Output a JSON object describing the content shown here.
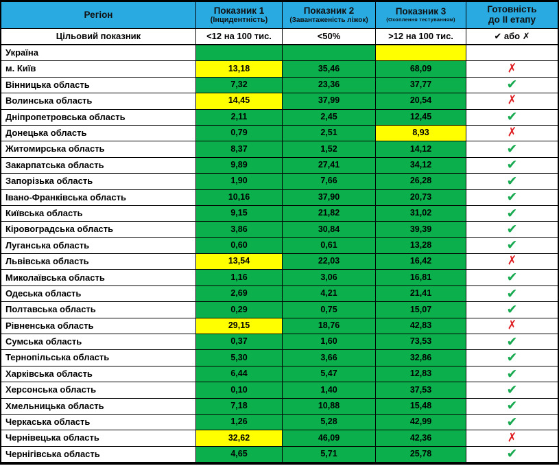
{
  "colors": {
    "header_blue": "#29ABE2",
    "cell_green": "#0BB04C",
    "cell_yellow": "#FFFF00",
    "cell_gray": "#C0C0C0",
    "check_green": "#17A94F",
    "cross_red": "#DE1B20",
    "grid": "#000000"
  },
  "marks": {
    "check": "✔",
    "cross": "✗"
  },
  "header": {
    "region": "Регіон",
    "ind1_title": "Показник 1",
    "ind1_sub": "(Інцидентність)",
    "ind2_title": "Показник 2",
    "ind2_sub": "(Завантаженість ліжок)",
    "ind3_title": "Показник 3",
    "ind3_sub": "(Охоплення тестуванням)",
    "ready_line1": "Готовність",
    "ready_line2": "до II етапу"
  },
  "target_row": {
    "label": "Цільовий показник",
    "ind1": "<12 на 100 тис.",
    "ind2": "<50%",
    "ind3": ">12 на 100 тис.",
    "ready": "✔ або ✗"
  },
  "chart_data": {
    "type": "table",
    "columns": [
      "Регіон",
      "Показник 1 (Інцидентність)",
      "Показник 2 (Завантаженість ліжок)",
      "Показник 3 (Охоплення тестуванням)",
      "Готовність до II етапу (✔ або ✗)"
    ],
    "target_values": [
      "<12 на 100 тис.",
      "<50%",
      ">12 на 100 тис."
    ],
    "rows": [
      {
        "region": "Україна",
        "v1": "",
        "v1_bg": "green",
        "v2": "",
        "v2_bg": "green",
        "v3": "",
        "v3_bg": "yellow",
        "ready": "none"
      },
      {
        "region": "м. Київ",
        "v1": "13,18",
        "v1_bg": "yellow",
        "v2": "35,46",
        "v2_bg": "green",
        "v3": "68,09",
        "v3_bg": "green",
        "ready": "no"
      },
      {
        "region": "Вінницька область",
        "v1": "7,32",
        "v1_bg": "green",
        "v2": "23,36",
        "v2_bg": "green",
        "v3": "37,77",
        "v3_bg": "green",
        "ready": "yes"
      },
      {
        "region": "Волинська область",
        "v1": "14,45",
        "v1_bg": "yellow",
        "v2": "37,99",
        "v2_bg": "green",
        "v3": "20,54",
        "v3_bg": "green",
        "ready": "no"
      },
      {
        "region": "Дніпропетровська область",
        "v1": "2,11",
        "v1_bg": "green",
        "v2": "2,45",
        "v2_bg": "green",
        "v3": "12,45",
        "v3_bg": "green",
        "ready": "yes"
      },
      {
        "region": "Донецька область",
        "v1": "0,79",
        "v1_bg": "green",
        "v2": "2,51",
        "v2_bg": "green",
        "v3": "8,93",
        "v3_bg": "yellow",
        "ready": "no"
      },
      {
        "region": "Житомирська область",
        "v1": "8,37",
        "v1_bg": "green",
        "v2": "1,52",
        "v2_bg": "green",
        "v3": "14,12",
        "v3_bg": "green",
        "ready": "yes"
      },
      {
        "region": "Закарпатська область",
        "v1": "9,89",
        "v1_bg": "green",
        "v2": "27,41",
        "v2_bg": "green",
        "v3": "34,12",
        "v3_bg": "green",
        "ready": "yes"
      },
      {
        "region": "Запорізька область",
        "v1": "1,90",
        "v1_bg": "green",
        "v2": "7,66",
        "v2_bg": "green",
        "v3": "26,28",
        "v3_bg": "green",
        "ready": "yes"
      },
      {
        "region": "Івано-Франківська область",
        "v1": "10,16",
        "v1_bg": "green",
        "v2": "37,90",
        "v2_bg": "green",
        "v3": "20,73",
        "v3_bg": "green",
        "ready": "yes"
      },
      {
        "region": "Київська область",
        "v1": "9,15",
        "v1_bg": "green",
        "v2": "21,82",
        "v2_bg": "green",
        "v3": "31,02",
        "v3_bg": "green",
        "ready": "yes"
      },
      {
        "region": "Кіровоградська область",
        "v1": "3,86",
        "v1_bg": "green",
        "v2": "30,84",
        "v2_bg": "green",
        "v3": "39,39",
        "v3_bg": "green",
        "ready": "yes"
      },
      {
        "region": "Луганська область",
        "v1": "0,60",
        "v1_bg": "green",
        "v2": "0,61",
        "v2_bg": "green",
        "v3": "13,28",
        "v3_bg": "green",
        "ready": "yes"
      },
      {
        "region": "Львівська область",
        "v1": "13,54",
        "v1_bg": "yellow",
        "v2": "22,03",
        "v2_bg": "green",
        "v3": "16,42",
        "v3_bg": "green",
        "ready": "no"
      },
      {
        "region": "Миколаївська область",
        "v1": "1,16",
        "v1_bg": "green",
        "v2": "3,06",
        "v2_bg": "green",
        "v3": "16,81",
        "v3_bg": "green",
        "ready": "yes"
      },
      {
        "region": "Одеська область",
        "v1": "2,69",
        "v1_bg": "green",
        "v2": "4,21",
        "v2_bg": "green",
        "v3": "21,41",
        "v3_bg": "green",
        "ready": "yes"
      },
      {
        "region": "Полтавська область",
        "v1": "0,29",
        "v1_bg": "green",
        "v2": "0,75",
        "v2_bg": "green",
        "v3": "15,07",
        "v3_bg": "green",
        "ready": "yes"
      },
      {
        "region": "Рівненська область",
        "v1": "29,15",
        "v1_bg": "yellow",
        "v2": "18,76",
        "v2_bg": "green",
        "v3": "42,83",
        "v3_bg": "green",
        "ready": "no"
      },
      {
        "region": "Сумська область",
        "v1": "0,37",
        "v1_bg": "green",
        "v2": "1,60",
        "v2_bg": "green",
        "v3": "73,53",
        "v3_bg": "green",
        "ready": "yes"
      },
      {
        "region": "Тернопільська область",
        "v1": "5,30",
        "v1_bg": "green",
        "v2": "3,66",
        "v2_bg": "green",
        "v3": "32,86",
        "v3_bg": "green",
        "ready": "yes"
      },
      {
        "region": "Харківська область",
        "v1": "6,44",
        "v1_bg": "green",
        "v2": "5,47",
        "v2_bg": "green",
        "v3": "12,83",
        "v3_bg": "green",
        "ready": "yes"
      },
      {
        "region": "Херсонська область",
        "v1": "0,10",
        "v1_bg": "green",
        "v2": "1,40",
        "v2_bg": "green",
        "v3": "37,53",
        "v3_bg": "green",
        "ready": "yes"
      },
      {
        "region": "Хмельницька область",
        "v1": "7,18",
        "v1_bg": "green",
        "v2": "10,88",
        "v2_bg": "green",
        "v3": "15,48",
        "v3_bg": "green",
        "ready": "yes"
      },
      {
        "region": "Черкаська область",
        "v1": "1,26",
        "v1_bg": "green",
        "v2": "5,28",
        "v2_bg": "green",
        "v3": "42,99",
        "v3_bg": "green",
        "ready": "yes"
      },
      {
        "region": "Чернівецька область",
        "v1": "32,62",
        "v1_bg": "yellow",
        "v2": "46,09",
        "v2_bg": "green",
        "v3": "42,36",
        "v3_bg": "green",
        "ready": "no"
      },
      {
        "region": "Чернігівська область",
        "v1": "4,65",
        "v1_bg": "green",
        "v2": "5,71",
        "v2_bg": "green",
        "v3": "25,78",
        "v3_bg": "green",
        "ready": "yes"
      }
    ]
  }
}
